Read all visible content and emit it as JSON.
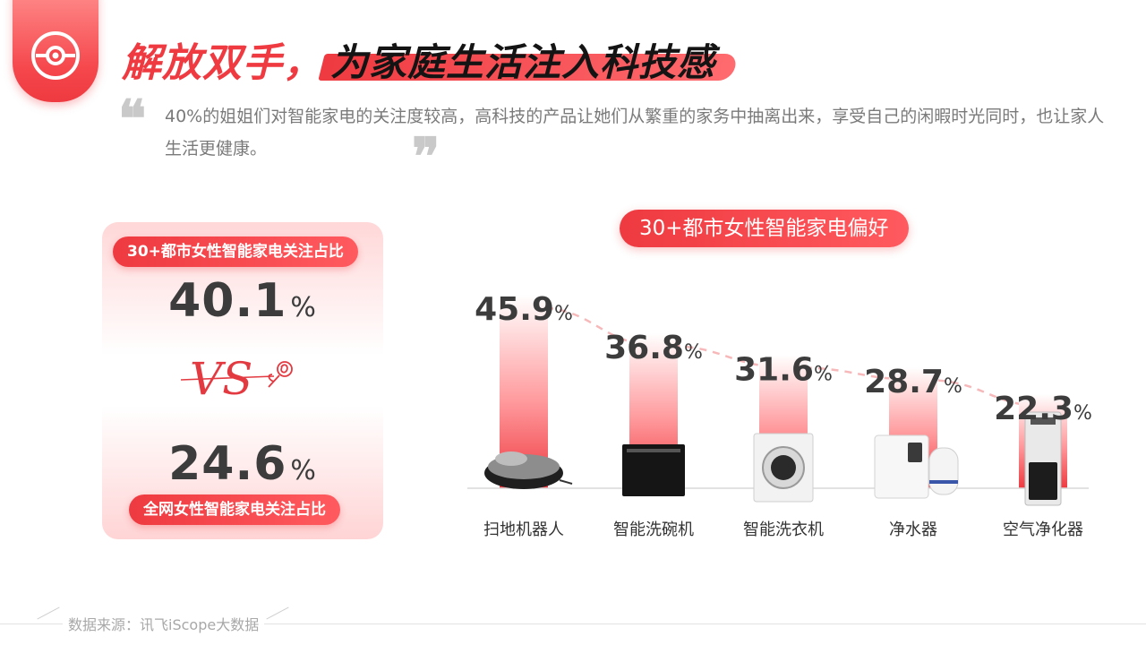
{
  "header": {
    "title_part1": "解放双手，",
    "title_part2": "为家庭生活注入科技感",
    "intro": "40%的姐姐们对智能家电的关注度较高，高科技的产品让她们从繁重的家务中抽离出来，享受自己的闲暇时光同时，也让家人生活更健康。",
    "quote_open": "❝",
    "quote_close": "❞"
  },
  "comparison": {
    "top_label": "30+都市女性智能家电关注占比",
    "top_value": "40.1",
    "bottom_label": "全网女性智能家电关注占比",
    "bottom_value": "24.6",
    "unit": "%",
    "vs_text": "VS"
  },
  "chart_data": {
    "type": "bar",
    "title": "30+都市女性智能家电偏好",
    "categories": [
      "扫地机器人",
      "智能洗碗机",
      "智能洗衣机",
      "净水器",
      "空气净化器"
    ],
    "values": [
      45.9,
      36.8,
      31.6,
      28.7,
      22.3
    ],
    "unit": "%",
    "icons": [
      "robot-vacuum-icon",
      "dishwasher-icon",
      "washing-machine-icon",
      "water-purifier-icon",
      "air-purifier-icon"
    ],
    "colors": {
      "bar_top": "#ffffff",
      "bar_bottom": "#ee3a40",
      "trend": "#f7b8ba"
    },
    "xlabel": "",
    "ylabel": "",
    "legend": "none",
    "grid": false
  },
  "footer": {
    "source": "数据来源：讯飞iScope大数据"
  }
}
